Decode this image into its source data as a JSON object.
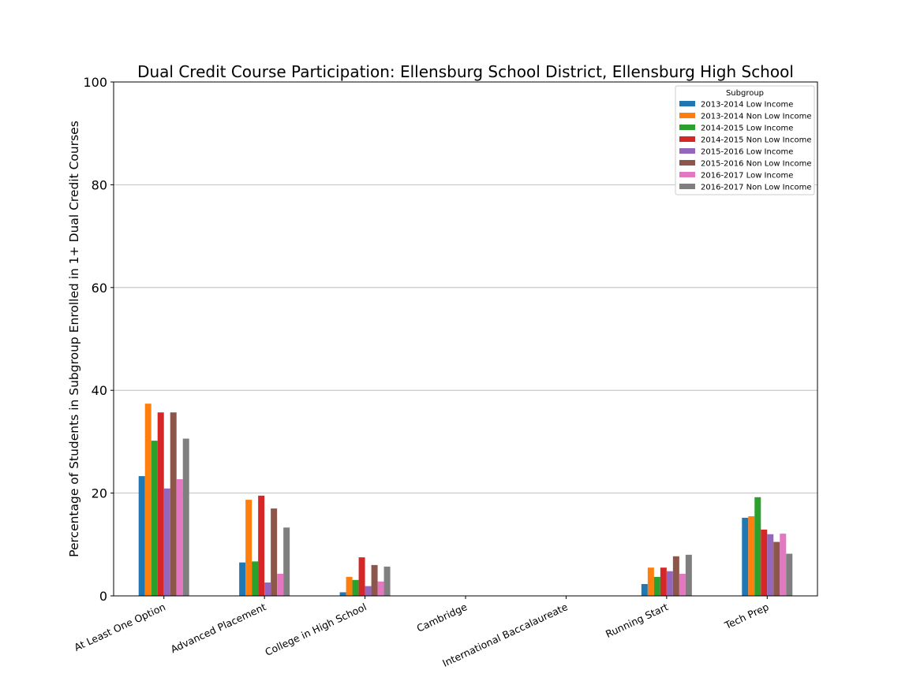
{
  "chart_data": {
    "type": "bar",
    "title": "Dual Credit Course Participation: Ellensburg School District, Ellensburg High School",
    "xlabel": "",
    "ylabel": "Percentage of Students in Subgroup Enrolled in 1+ Dual Credit Courses",
    "ylim": [
      0,
      100
    ],
    "yticks": [
      0,
      20,
      40,
      60,
      80,
      100
    ],
    "grid": "horizontal",
    "legend_title": "Subgroup",
    "legend_position": "top-right",
    "categories": [
      "At Least One Option",
      "Advanced Placement",
      "College in High School",
      "Cambridge",
      "International Baccalaureate",
      "Running Start",
      "Tech Prep"
    ],
    "series": [
      {
        "name": "2013-2014 Low Income",
        "color": "#1f77b4",
        "values": [
          23.3,
          6.5,
          0.7,
          0,
          0,
          2.3,
          15.2
        ]
      },
      {
        "name": "2013-2014 Non Low Income",
        "color": "#ff7f0e",
        "values": [
          37.4,
          18.7,
          3.7,
          0,
          0,
          5.5,
          15.5
        ]
      },
      {
        "name": "2014-2015 Low Income",
        "color": "#2ca02c",
        "values": [
          30.2,
          6.7,
          3.1,
          0,
          0,
          3.7,
          19.2
        ]
      },
      {
        "name": "2014-2015 Non Low Income",
        "color": "#d62728",
        "values": [
          35.7,
          19.5,
          7.5,
          0,
          0,
          5.5,
          12.9
        ]
      },
      {
        "name": "2015-2016 Low Income",
        "color": "#9467bd",
        "values": [
          20.9,
          2.6,
          1.9,
          0,
          0,
          4.8,
          12.0
        ]
      },
      {
        "name": "2015-2016 Non Low Income",
        "color": "#8c564b",
        "values": [
          35.7,
          17.0,
          6.0,
          0,
          0,
          7.7,
          10.5
        ]
      },
      {
        "name": "2016-2017 Low Income",
        "color": "#e377c2",
        "values": [
          22.7,
          4.3,
          2.8,
          0,
          0,
          4.3,
          12.1
        ]
      },
      {
        "name": "2016-2017 Non Low Income",
        "color": "#7f7f7f",
        "values": [
          30.6,
          13.3,
          5.7,
          0,
          0,
          8.0,
          8.2
        ]
      }
    ]
  }
}
